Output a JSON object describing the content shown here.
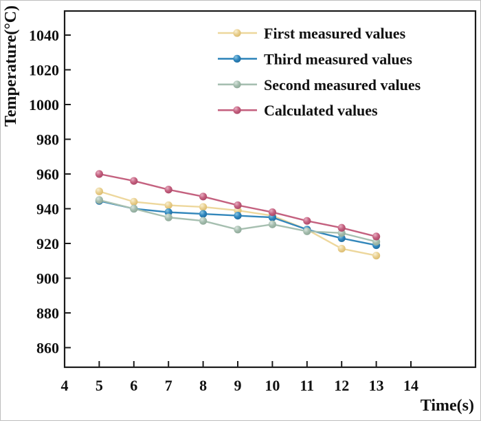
{
  "figure": {
    "background": "#ffffff",
    "axis_color": "#1a1a1a"
  },
  "chart_data": {
    "type": "line",
    "title": "",
    "xlabel": "Time(s)",
    "ylabel": "Temperature(°C)",
    "x": [
      5,
      6,
      7,
      8,
      9,
      10,
      11,
      12,
      13
    ],
    "x_ticks": [
      4,
      5,
      6,
      7,
      8,
      9,
      10,
      11,
      12,
      13,
      14
    ],
    "y_ticks": [
      860,
      880,
      900,
      920,
      940,
      960,
      980,
      1000,
      1020,
      1040
    ],
    "xlim": [
      4,
      14
    ],
    "ylim": [
      860,
      1040
    ],
    "grid": false,
    "legend_position": "upper-center-inside",
    "series": [
      {
        "name": "First measured values",
        "color": "#E9CF8E",
        "line_color": "#EDD79C",
        "highlight": "#F9F0D3",
        "shade": "#D8B768",
        "values": [
          950,
          944,
          942,
          941,
          939,
          936,
          928,
          917,
          913
        ]
      },
      {
        "name": "Third measured values",
        "color": "#2E86BE",
        "line_color": "#3387BB",
        "highlight": "#8CC6E2",
        "shade": "#1F6899",
        "values": [
          944.5,
          940,
          938,
          937,
          936,
          935,
          928,
          923,
          919
        ]
      },
      {
        "name": "Second measured values",
        "color": "#A3BCAD",
        "line_color": "#A6BFB0",
        "highlight": "#D9E5DE",
        "shade": "#8BA695",
        "values": [
          945,
          940,
          935,
          933,
          928,
          931,
          927,
          926,
          921
        ]
      },
      {
        "name": "Calculated values",
        "color": "#C4607F",
        "line_color": "#C4617F",
        "highlight": "#E8B0C3",
        "shade": "#A84464",
        "values": [
          960,
          956,
          951,
          947,
          942,
          938,
          933,
          929,
          924
        ]
      }
    ]
  }
}
